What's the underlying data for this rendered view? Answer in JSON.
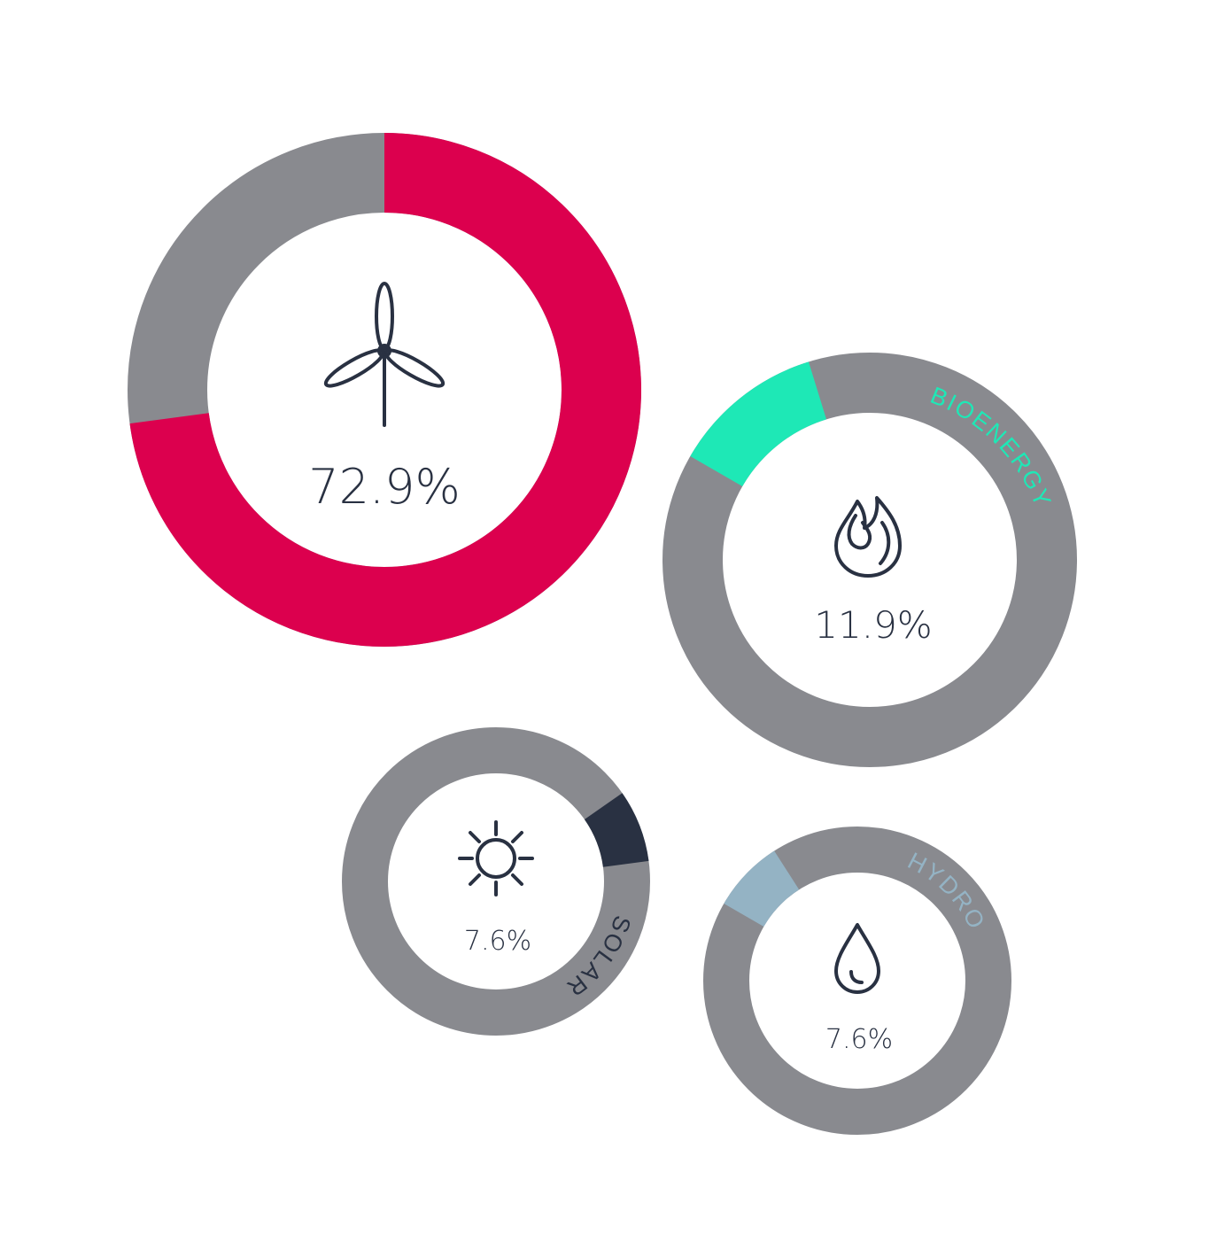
{
  "chart_data": {
    "type": "pie",
    "style": "donut",
    "series": [
      {
        "name": "WIND POWER",
        "value": 72.9,
        "label": "72.9%",
        "color": "#dc004e",
        "icon": "wind-turbine-icon"
      },
      {
        "name": "BIOENERGY",
        "value": 11.9,
        "label": "11.9%",
        "color": "#1ee8b6",
        "icon": "flame-icon"
      },
      {
        "name": "SOLAR",
        "value": 7.6,
        "label": "7.6%",
        "color": "#293142",
        "icon": "sun-icon"
      },
      {
        "name": "HYDRO",
        "value": 7.6,
        "label": "7.6%",
        "color": "#94b3c4",
        "icon": "water-drop-icon"
      }
    ],
    "remainder_color": "#898a8f",
    "unit": "%"
  }
}
